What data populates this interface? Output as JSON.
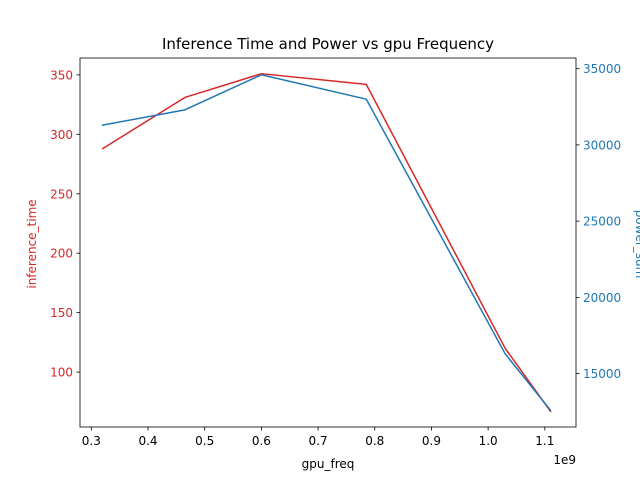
{
  "chart_data": {
    "type": "line",
    "title": "Inference Time and Power vs gpu Frequency",
    "xlabel": "gpu_freq",
    "x_offset_label": "1e9",
    "x": [
      0.32,
      0.465,
      0.6,
      0.785,
      1.03,
      1.11
    ],
    "xlim": [
      0.28,
      1.155
    ],
    "xticks": [
      0.3,
      0.4,
      0.5,
      0.6,
      0.7,
      0.8,
      0.9,
      1.0,
      1.1
    ],
    "xtick_labels": [
      "0.3",
      "0.4",
      "0.5",
      "0.6",
      "0.7",
      "0.8",
      "0.9",
      "1.0",
      "1.1"
    ],
    "grid": false,
    "series": [
      {
        "name": "inference_time",
        "axis": "left",
        "color": "#d62728",
        "values": [
          288,
          331,
          351,
          342,
          120,
          67
        ]
      },
      {
        "name": "power_sum",
        "axis": "right",
        "color": "#1f77b4",
        "values": [
          31300,
          32300,
          34600,
          33000,
          16300,
          12600
        ]
      }
    ],
    "y_left": {
      "label": "inference_time",
      "color": "#d62728",
      "lim": [
        53.8,
        364.2
      ],
      "ticks": [
        100,
        150,
        200,
        250,
        300,
        350
      ],
      "tick_labels": [
        "100",
        "150",
        "200",
        "250",
        "300",
        "350"
      ]
    },
    "y_right": {
      "label": "power_sum",
      "color": "#1f77b4",
      "lim": [
        11500,
        35700
      ],
      "ticks": [
        15000,
        20000,
        25000,
        30000,
        35000
      ],
      "tick_labels": [
        "15000",
        "20000",
        "25000",
        "30000",
        "35000"
      ]
    }
  }
}
